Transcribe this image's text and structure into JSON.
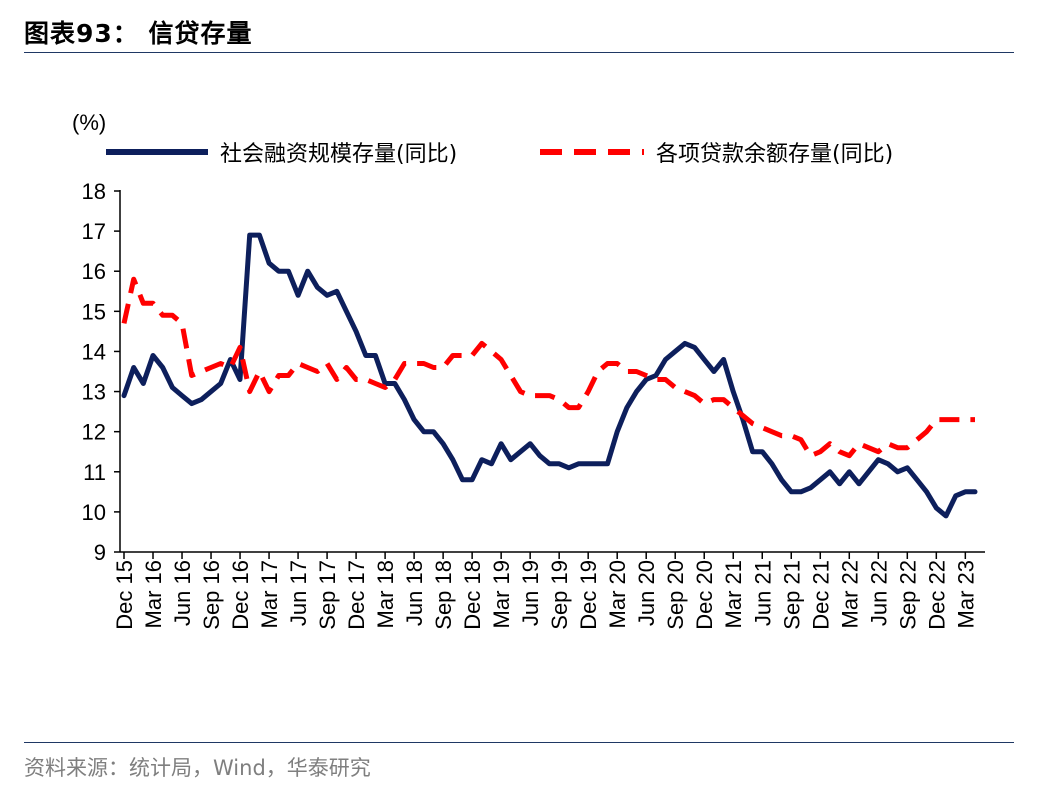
{
  "header": {
    "title": "图表93：  信贷存量"
  },
  "footer": {
    "source": "资料来源：统计局，Wind，华泰研究"
  },
  "colors": {
    "accent_navy": "#0d1f5c",
    "accent_red": "#ff0000",
    "rule": "#1f3864"
  },
  "chart_data": {
    "type": "line",
    "title": "",
    "ylabel": "(%)",
    "xlabel": "",
    "ylim": [
      9,
      18
    ],
    "yticks": [
      9,
      10,
      11,
      12,
      13,
      14,
      15,
      16,
      17,
      18
    ],
    "x": [
      "Dec 15",
      "Jan 16",
      "Feb 16",
      "Mar 16",
      "Apr 16",
      "May 16",
      "Jun 16",
      "Jul 16",
      "Aug 16",
      "Sep 16",
      "Oct 16",
      "Nov 16",
      "Dec 16",
      "Jan 17",
      "Feb 17",
      "Mar 17",
      "Apr 17",
      "May 17",
      "Jun 17",
      "Jul 17",
      "Aug 17",
      "Sep 17",
      "Oct 17",
      "Nov 17",
      "Dec 17",
      "Jan 18",
      "Feb 18",
      "Mar 18",
      "Apr 18",
      "May 18",
      "Jun 18",
      "Jul 18",
      "Aug 18",
      "Sep 18",
      "Oct 18",
      "Nov 18",
      "Dec 18",
      "Jan 19",
      "Feb 19",
      "Mar 19",
      "Apr 19",
      "May 19",
      "Jun 19",
      "Jul 19",
      "Aug 19",
      "Sep 19",
      "Oct 19",
      "Nov 19",
      "Dec 19",
      "Jan 20",
      "Feb 20",
      "Mar 20",
      "Apr 20",
      "May 20",
      "Jun 20",
      "Jul 20",
      "Aug 20",
      "Sep 20",
      "Oct 20",
      "Nov 20",
      "Dec 20",
      "Jan 21",
      "Feb 21",
      "Mar 21",
      "Apr 21",
      "May 21",
      "Jun 21",
      "Jul 21",
      "Aug 21",
      "Sep 21",
      "Oct 21",
      "Nov 21",
      "Dec 21",
      "Jan 22",
      "Feb 22",
      "Mar 22",
      "Apr 22",
      "May 22",
      "Jun 22",
      "Jul 22",
      "Aug 22",
      "Sep 22",
      "Oct 22",
      "Nov 22",
      "Dec 22",
      "Jan 23",
      "Feb 23",
      "Mar 23",
      "Apr 23"
    ],
    "x_tick_labels": [
      "Dec 15",
      "Mar 16",
      "Jun 16",
      "Sep 16",
      "Dec 16",
      "Mar 17",
      "Jun 17",
      "Sep 17",
      "Dec 17",
      "Mar 18",
      "Jun 18",
      "Sep 18",
      "Dec 18",
      "Mar 19",
      "Jun 19",
      "Sep 19",
      "Dec 19",
      "Mar 20",
      "Jun 20",
      "Sep 20",
      "Dec 20",
      "Mar 21",
      "Jun 21",
      "Sep 21",
      "Dec 21",
      "Mar 22",
      "Jun 22",
      "Sep 22",
      "Dec 22",
      "Mar 23"
    ],
    "legend": "top",
    "grid": false,
    "series": [
      {
        "name": "社会融资规模存量(同比)",
        "color": "#0d1f5c",
        "style": "solid",
        "values": [
          12.9,
          13.6,
          13.2,
          13.9,
          13.6,
          13.1,
          12.9,
          12.7,
          12.8,
          13.0,
          13.2,
          13.8,
          13.3,
          16.9,
          16.9,
          16.2,
          16.0,
          16.0,
          15.4,
          16.0,
          15.6,
          15.4,
          15.5,
          15.0,
          14.5,
          13.9,
          13.9,
          13.2,
          13.2,
          12.8,
          12.3,
          12.0,
          12.0,
          11.7,
          11.3,
          10.8,
          10.8,
          11.3,
          11.2,
          11.7,
          11.3,
          11.5,
          11.7,
          11.4,
          11.2,
          11.2,
          11.1,
          11.2,
          11.2,
          11.2,
          11.2,
          12.0,
          12.6,
          13.0,
          13.3,
          13.4,
          13.8,
          14.0,
          14.2,
          14.1,
          13.8,
          13.5,
          13.8,
          13.0,
          12.3,
          11.5,
          11.5,
          11.2,
          10.8,
          10.5,
          10.5,
          10.6,
          10.8,
          11.0,
          10.7,
          11.0,
          10.7,
          11.0,
          11.3,
          11.2,
          11.0,
          11.1,
          10.8,
          10.5,
          10.1,
          9.9,
          10.4,
          10.5,
          10.5
        ]
      },
      {
        "name": "各项贷款余额存量(同比)",
        "color": "#ff0000",
        "style": "dashed",
        "values": [
          14.7,
          15.8,
          15.2,
          15.2,
          14.9,
          14.9,
          14.7,
          13.4,
          13.5,
          13.6,
          13.7,
          13.6,
          14.1,
          13.0,
          13.5,
          13.0,
          13.4,
          13.4,
          13.7,
          13.6,
          13.5,
          13.7,
          13.3,
          13.6,
          13.3,
          13.3,
          13.2,
          13.1,
          13.3,
          13.7,
          13.7,
          13.7,
          13.6,
          13.6,
          13.9,
          13.9,
          13.9,
          14.2,
          14.0,
          13.8,
          13.4,
          13.0,
          12.9,
          12.9,
          12.9,
          12.8,
          12.6,
          12.6,
          13.0,
          13.5,
          13.7,
          13.7,
          13.5,
          13.5,
          13.4,
          13.3,
          13.3,
          13.1,
          13.0,
          12.9,
          12.7,
          12.8,
          12.8,
          12.6,
          12.4,
          12.2,
          12.1,
          12.0,
          11.9,
          11.9,
          11.8,
          11.4,
          11.5,
          11.7,
          11.5,
          11.4,
          11.7,
          11.6,
          11.5,
          11.7,
          11.6,
          11.6,
          11.8,
          12.0,
          12.3,
          12.3,
          12.3,
          12.3,
          12.3
        ]
      }
    ]
  }
}
